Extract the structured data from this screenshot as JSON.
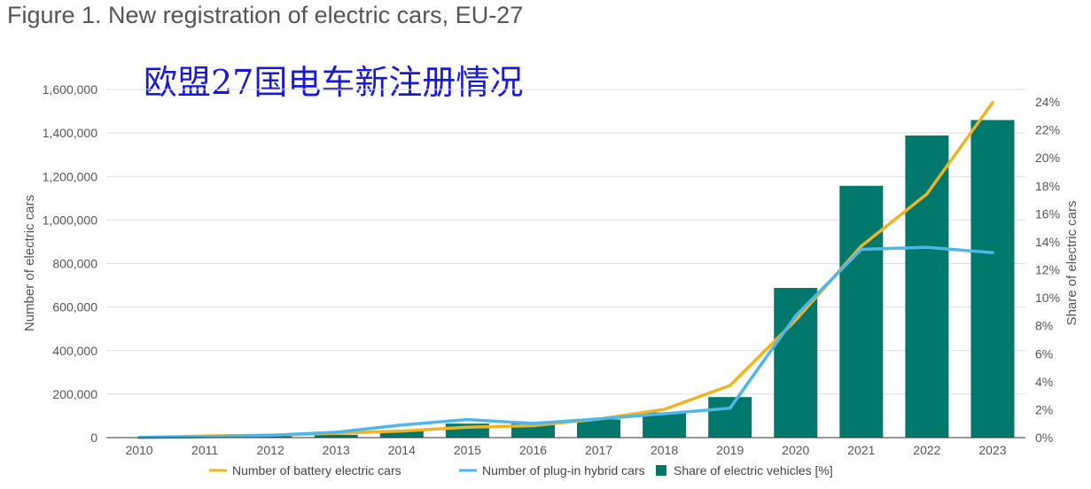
{
  "figure_title": "Figure 1. New registration of electric cars, EU-27",
  "chart_data": {
    "type": "bar",
    "title": "欧盟27国电车新注册情况",
    "categories": [
      "2010",
      "2011",
      "2012",
      "2013",
      "2014",
      "2015",
      "2016",
      "2017",
      "2018",
      "2019",
      "2020",
      "2021",
      "2022",
      "2023"
    ],
    "ylabel": "Number of electric cars",
    "y2label": "Share of electric cars",
    "ylim": [
      0,
      1600000
    ],
    "y2lim": [
      0,
      24
    ],
    "yticks": [
      "0",
      "200,000",
      "400,000",
      "600,000",
      "800,000",
      "1,000,000",
      "1,200,000",
      "1,400,000",
      "1,600,000"
    ],
    "y2ticks": [
      "0%",
      "2%",
      "4%",
      "6%",
      "8%",
      "10%",
      "12%",
      "14%",
      "16%",
      "18%",
      "20%",
      "22%",
      "24%"
    ],
    "grid": "horizontal",
    "legend_position": "bottom",
    "series": [
      {
        "name": "Number of battery electric cars",
        "kind": "line",
        "axis": "left",
        "color": "#f0b323",
        "values": [
          1000,
          7000,
          12000,
          20000,
          30000,
          48000,
          55000,
          85000,
          130000,
          240000,
          540000,
          880000,
          1120000,
          1540000
        ]
      },
      {
        "name": "Number of plug-in hybrid cars",
        "kind": "line",
        "axis": "left",
        "color": "#4db7ea",
        "values": [
          500,
          4000,
          10000,
          25000,
          58000,
          83000,
          65000,
          86000,
          110000,
          135000,
          560000,
          865000,
          875000,
          850000
        ]
      },
      {
        "name": "Share of electric vehicles [%]",
        "kind": "bar",
        "axis": "right",
        "color": "#00786b",
        "values": [
          0.0,
          0.1,
          0.1,
          0.2,
          0.5,
          1.0,
          1.0,
          1.3,
          1.8,
          2.9,
          10.7,
          18.0,
          21.6,
          22.7
        ]
      }
    ]
  }
}
